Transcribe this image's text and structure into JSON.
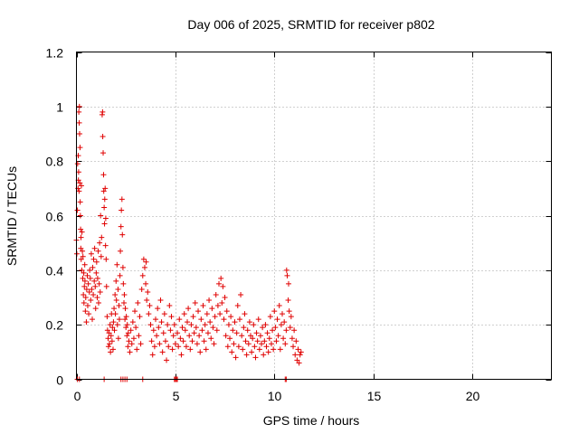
{
  "chart_data": {
    "type": "scatter",
    "title": "Day 006 of 2025, SRMTID for receiver p802",
    "xlabel": "GPS time / hours",
    "ylabel": "SRMTID / TECUs",
    "xlim": [
      0,
      24
    ],
    "ylim": [
      0,
      1.2
    ],
    "grid": true,
    "x_ticks": [
      0,
      5,
      10,
      15,
      20
    ],
    "x_tick_labels": [
      "0",
      "5",
      "10",
      "15",
      "20"
    ],
    "y_ticks": [
      0,
      0.2,
      0.4,
      0.6,
      0.8,
      1.0,
      1.2
    ],
    "y_tick_labels": [
      "0",
      "0.2",
      "0.4",
      "0.6",
      "0.8",
      "1",
      "1.2"
    ],
    "marker": "+",
    "color": "#e00000",
    "series": [
      {
        "name": "SRMTID",
        "points": [
          [
            0.0,
            0.51
          ],
          [
            0.02,
            0.46
          ],
          [
            0.05,
            0.62
          ],
          [
            0.06,
            0.79
          ],
          [
            0.08,
            0.7
          ],
          [
            0.09,
            0.82
          ],
          [
            0.1,
            0.73
          ],
          [
            0.11,
            0.76
          ],
          [
            0.12,
            0.98
          ],
          [
            0.13,
            0.69
          ],
          [
            0.14,
            0.94
          ],
          [
            0.15,
            1.0
          ],
          [
            0.16,
            0.9
          ],
          [
            0.17,
            0.72
          ],
          [
            0.18,
            0.85
          ],
          [
            0.19,
            0.65
          ],
          [
            0.2,
            0.6
          ],
          [
            0.21,
            0.55
          ],
          [
            0.22,
            0.48
          ],
          [
            0.23,
            0.52
          ],
          [
            0.24,
            0.44
          ],
          [
            0.25,
            0.71
          ],
          [
            0.27,
            0.4
          ],
          [
            0.28,
            0.54
          ],
          [
            0.3,
            0.47
          ],
          [
            0.32,
            0.37
          ],
          [
            0.33,
            0.45
          ],
          [
            0.35,
            0.31
          ],
          [
            0.37,
            0.39
          ],
          [
            0.38,
            0.28
          ],
          [
            0.4,
            0.34
          ],
          [
            0.42,
            0.42
          ],
          [
            0.43,
            0.36
          ],
          [
            0.45,
            0.25
          ],
          [
            0.47,
            0.3
          ],
          [
            0.5,
            0.21
          ],
          [
            0.52,
            0.33
          ],
          [
            0.55,
            0.38
          ],
          [
            0.57,
            0.27
          ],
          [
            0.6,
            0.35
          ],
          [
            0.62,
            0.24
          ],
          [
            0.65,
            0.32
          ],
          [
            0.67,
            0.4
          ],
          [
            0.7,
            0.37
          ],
          [
            0.72,
            0.29
          ],
          [
            0.75,
            0.46
          ],
          [
            0.77,
            0.33
          ],
          [
            0.8,
            0.22
          ],
          [
            0.82,
            0.41
          ],
          [
            0.85,
            0.31
          ],
          [
            0.87,
            0.44
          ],
          [
            0.9,
            0.36
          ],
          [
            0.92,
            0.48
          ],
          [
            0.95,
            0.34
          ],
          [
            0.97,
            0.26
          ],
          [
            1.0,
            0.39
          ],
          [
            1.02,
            0.43
          ],
          [
            1.05,
            0.3
          ],
          [
            1.07,
            0.37
          ],
          [
            1.1,
            0.47
          ],
          [
            1.12,
            0.28
          ],
          [
            1.15,
            0.35
          ],
          [
            1.17,
            0.5
          ],
          [
            1.2,
            0.32
          ],
          [
            1.22,
            0.6
          ],
          [
            1.25,
            0.45
          ],
          [
            1.27,
            0.52
          ],
          [
            1.3,
            0.97
          ],
          [
            1.32,
            0.98
          ],
          [
            1.33,
            0.89
          ],
          [
            1.35,
            0.83
          ],
          [
            1.37,
            0.75
          ],
          [
            1.38,
            0.69
          ],
          [
            1.4,
            0.63
          ],
          [
            1.42,
            0.57
          ],
          [
            1.43,
            0.66
          ],
          [
            1.45,
            0.7
          ],
          [
            1.47,
            0.49
          ],
          [
            1.48,
            0.59
          ],
          [
            1.5,
            0.44
          ],
          [
            1.52,
            0.34
          ],
          [
            1.55,
            0.23
          ],
          [
            1.57,
            0.18
          ],
          [
            1.6,
            0.15
          ],
          [
            1.62,
            0.12
          ],
          [
            1.65,
            0.17
          ],
          [
            1.67,
            0.13
          ],
          [
            1.7,
            0.2
          ],
          [
            1.72,
            0.1
          ],
          [
            1.75,
            0.16
          ],
          [
            1.77,
            0.24
          ],
          [
            1.8,
            0.14
          ],
          [
            1.82,
            0.19
          ],
          [
            1.85,
            0.11
          ],
          [
            1.87,
            0.21
          ],
          [
            1.9,
            0.26
          ],
          [
            1.92,
            0.18
          ],
          [
            1.95,
            0.31
          ],
          [
            1.97,
            0.24
          ],
          [
            2.0,
            0.36
          ],
          [
            2.02,
            0.29
          ],
          [
            2.05,
            0.42
          ],
          [
            2.07,
            0.2
          ],
          [
            2.1,
            0.33
          ],
          [
            2.12,
            0.15
          ],
          [
            2.15,
            0.27
          ],
          [
            2.17,
            0.22
          ],
          [
            2.2,
            0.38
          ],
          [
            2.22,
            0.47
          ],
          [
            2.25,
            0.56
          ],
          [
            2.27,
            0.62
          ],
          [
            2.3,
            0.66
          ],
          [
            2.32,
            0.53
          ],
          [
            2.35,
            0.41
          ],
          [
            2.37,
            0.35
          ],
          [
            2.4,
            0.28
          ],
          [
            2.42,
            0.31
          ],
          [
            2.45,
            0.22
          ],
          [
            2.47,
            0.26
          ],
          [
            2.5,
            0.19
          ],
          [
            2.52,
            0.23
          ],
          [
            2.55,
            0.16
          ],
          [
            2.57,
            0.2
          ],
          [
            2.6,
            0.12
          ],
          [
            2.62,
            0.17
          ],
          [
            2.65,
            0.14
          ],
          [
            2.7,
            0.1
          ],
          [
            2.75,
            0.18
          ],
          [
            2.8,
            0.13
          ],
          [
            2.85,
            0.21
          ],
          [
            2.9,
            0.15
          ],
          [
            2.95,
            0.25
          ],
          [
            3.0,
            0.19
          ],
          [
            3.05,
            0.11
          ],
          [
            3.1,
            0.28
          ],
          [
            3.15,
            0.16
          ],
          [
            3.2,
            0.23
          ],
          [
            3.25,
            0.13
          ],
          [
            3.3,
            0.33
          ],
          [
            3.35,
            0.38
          ],
          [
            3.4,
            0.44
          ],
          [
            3.45,
            0.41
          ],
          [
            3.5,
            0.35
          ],
          [
            3.52,
            0.43
          ],
          [
            3.55,
            0.29
          ],
          [
            3.6,
            0.32
          ],
          [
            3.65,
            0.24
          ],
          [
            3.7,
            0.27
          ],
          [
            3.75,
            0.2
          ],
          [
            3.8,
            0.14
          ],
          [
            3.85,
            0.09
          ],
          [
            3.9,
            0.18
          ],
          [
            3.95,
            0.12
          ],
          [
            4.0,
            0.22
          ],
          [
            4.05,
            0.16
          ],
          [
            4.1,
            0.26
          ],
          [
            4.15,
            0.19
          ],
          [
            4.2,
            0.13
          ],
          [
            4.25,
            0.29
          ],
          [
            4.3,
            0.21
          ],
          [
            4.35,
            0.1
          ],
          [
            4.4,
            0.17
          ],
          [
            4.45,
            0.24
          ],
          [
            4.5,
            0.14
          ],
          [
            4.55,
            0.07
          ],
          [
            4.6,
            0.2
          ],
          [
            4.65,
            0.12
          ],
          [
            4.7,
            0.27
          ],
          [
            4.75,
            0.18
          ],
          [
            4.8,
            0.23
          ],
          [
            4.85,
            0.11
          ],
          [
            4.9,
            0.16
          ],
          [
            4.95,
            0.2
          ],
          [
            5.0,
            0.13
          ],
          [
            5.1,
            0.17
          ],
          [
            5.15,
            0.12
          ],
          [
            5.2,
            0.22
          ],
          [
            5.25,
            0.15
          ],
          [
            5.3,
            0.09
          ],
          [
            5.35,
            0.19
          ],
          [
            5.4,
            0.14
          ],
          [
            5.45,
            0.24
          ],
          [
            5.5,
            0.18
          ],
          [
            5.55,
            0.12
          ],
          [
            5.6,
            0.21
          ],
          [
            5.65,
            0.26
          ],
          [
            5.7,
            0.16
          ],
          [
            5.75,
            0.11
          ],
          [
            5.8,
            0.2
          ],
          [
            5.85,
            0.14
          ],
          [
            5.9,
            0.23
          ],
          [
            5.95,
            0.17
          ],
          [
            6.0,
            0.28
          ],
          [
            6.05,
            0.19
          ],
          [
            6.1,
            0.13
          ],
          [
            6.15,
            0.25
          ],
          [
            6.2,
            0.16
          ],
          [
            6.25,
            0.1
          ],
          [
            6.3,
            0.22
          ],
          [
            6.35,
            0.18
          ],
          [
            6.4,
            0.27
          ],
          [
            6.45,
            0.14
          ],
          [
            6.5,
            0.2
          ],
          [
            6.55,
            0.11
          ],
          [
            6.6,
            0.24
          ],
          [
            6.65,
            0.17
          ],
          [
            6.7,
            0.29
          ],
          [
            6.75,
            0.21
          ],
          [
            6.8,
            0.15
          ],
          [
            6.85,
            0.26
          ],
          [
            6.9,
            0.19
          ],
          [
            6.95,
            0.13
          ],
          [
            7.0,
            0.23
          ],
          [
            7.05,
            0.31
          ],
          [
            7.1,
            0.18
          ],
          [
            7.15,
            0.27
          ],
          [
            7.2,
            0.35
          ],
          [
            7.25,
            0.24
          ],
          [
            7.3,
            0.37
          ],
          [
            7.35,
            0.28
          ],
          [
            7.4,
            0.34
          ],
          [
            7.45,
            0.22
          ],
          [
            7.5,
            0.3
          ],
          [
            7.55,
            0.16
          ],
          [
            7.6,
            0.25
          ],
          [
            7.65,
            0.12
          ],
          [
            7.7,
            0.2
          ],
          [
            7.75,
            0.15
          ],
          [
            7.8,
            0.23
          ],
          [
            7.85,
            0.1
          ],
          [
            7.9,
            0.18
          ],
          [
            7.95,
            0.13
          ],
          [
            8.0,
            0.21
          ],
          [
            8.05,
            0.08
          ],
          [
            8.1,
            0.17
          ],
          [
            8.15,
            0.27
          ],
          [
            8.2,
            0.12
          ],
          [
            8.25,
            0.22
          ],
          [
            8.3,
            0.31
          ],
          [
            8.35,
            0.16
          ],
          [
            8.4,
            0.11
          ],
          [
            8.45,
            0.19
          ],
          [
            8.5,
            0.24
          ],
          [
            8.55,
            0.14
          ],
          [
            8.6,
            0.09
          ],
          [
            8.65,
            0.18
          ],
          [
            8.7,
            0.13
          ],
          [
            8.75,
            0.21
          ],
          [
            8.8,
            0.16
          ],
          [
            8.85,
            0.1
          ],
          [
            8.9,
            0.15
          ],
          [
            8.95,
            0.2
          ],
          [
            9.0,
            0.12
          ],
          [
            9.05,
            0.08
          ],
          [
            9.1,
            0.17
          ],
          [
            9.15,
            0.14
          ],
          [
            9.2,
            0.22
          ],
          [
            9.25,
            0.11
          ],
          [
            9.3,
            0.16
          ],
          [
            9.35,
            0.13
          ],
          [
            9.4,
            0.19
          ],
          [
            9.45,
            0.09
          ],
          [
            9.5,
            0.14
          ],
          [
            9.55,
            0.2
          ],
          [
            9.6,
            0.12
          ],
          [
            9.65,
            0.17
          ],
          [
            9.7,
            0.1
          ],
          [
            9.75,
            0.15
          ],
          [
            9.8,
            0.23
          ],
          [
            9.85,
            0.13
          ],
          [
            9.9,
            0.18
          ],
          [
            9.95,
            0.11
          ],
          [
            10.0,
            0.25
          ],
          [
            10.05,
            0.19
          ],
          [
            10.1,
            0.14
          ],
          [
            10.15,
            0.22
          ],
          [
            10.2,
            0.16
          ],
          [
            10.25,
            0.27
          ],
          [
            10.3,
            0.11
          ],
          [
            10.35,
            0.2
          ],
          [
            10.4,
            0.24
          ],
          [
            10.45,
            0.15
          ],
          [
            10.5,
            0.21
          ],
          [
            10.55,
            0.13
          ],
          [
            10.6,
            0.18
          ],
          [
            10.62,
            0.4
          ],
          [
            10.65,
            0.38
          ],
          [
            10.7,
            0.29
          ],
          [
            10.72,
            0.35
          ],
          [
            10.75,
            0.25
          ],
          [
            10.8,
            0.19
          ],
          [
            10.85,
            0.23
          ],
          [
            10.9,
            0.15
          ],
          [
            10.95,
            0.12
          ],
          [
            11.0,
            0.18
          ],
          [
            11.05,
            0.09
          ],
          [
            11.1,
            0.14
          ],
          [
            11.15,
            0.07
          ],
          [
            11.2,
            0.11
          ],
          [
            11.25,
            0.06
          ],
          [
            11.3,
            0.09
          ],
          [
            11.35,
            0.1
          ],
          [
            0.05,
            0.0
          ],
          [
            0.15,
            0.0
          ],
          [
            1.4,
            0.0
          ],
          [
            2.25,
            0.0
          ],
          [
            2.35,
            0.0
          ],
          [
            2.45,
            0.0
          ],
          [
            2.55,
            0.0
          ],
          [
            3.35,
            0.0
          ],
          [
            4.95,
            0.0
          ],
          [
            5.0,
            0.0
          ],
          [
            5.05,
            0.0
          ],
          [
            5.1,
            0.0
          ],
          [
            10.55,
            0.0
          ],
          [
            10.6,
            0.0
          ]
        ]
      }
    ]
  }
}
